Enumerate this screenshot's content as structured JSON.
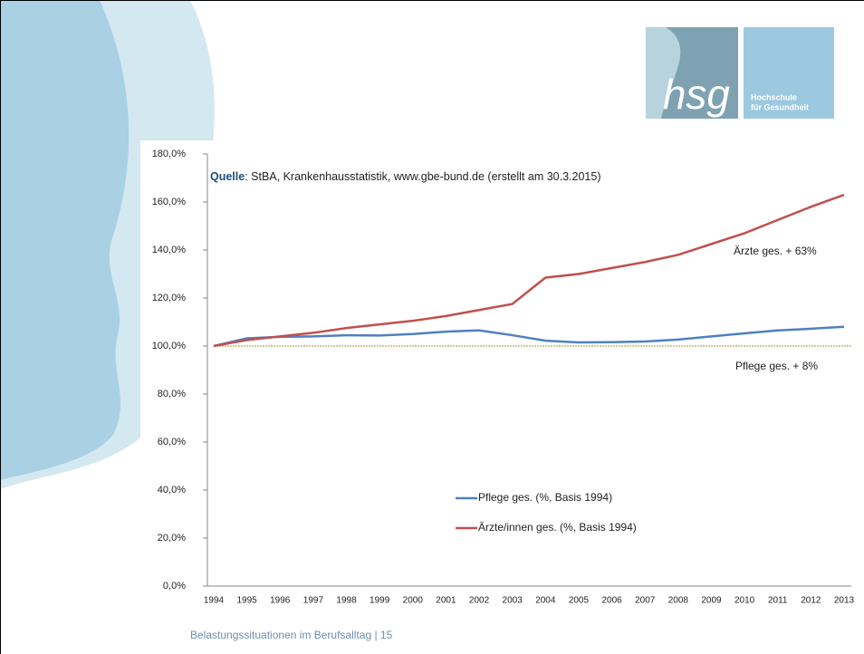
{
  "logo": {
    "mark": "hsg",
    "line1": "Hochschule",
    "line2": "für Gesundheit"
  },
  "footer": "Belastungssituationen im Berufsalltag | 15",
  "chart_data": {
    "type": "line",
    "source_label": "Quelle",
    "source_text": ": StBA, Krankenhausstatistik, www.gbe-bund.de  (erstellt am 30.3.2015)",
    "categories": [
      "1994",
      "1995",
      "1996",
      "1997",
      "1998",
      "1999",
      "2000",
      "2001",
      "2002",
      "2003",
      "2004",
      "2005",
      "2006",
      "2007",
      "2008",
      "2009",
      "2010",
      "2011",
      "2012",
      "2013"
    ],
    "series": [
      {
        "name": "Pflege ges. (%, Basis 1994)",
        "color": "#4f81bd",
        "values": [
          100,
          103.2,
          103.8,
          104,
          104.5,
          104.4,
          105,
          106,
          106.5,
          104.5,
          102.2,
          101.5,
          101.6,
          101.9,
          102.7,
          104,
          105.3,
          106.5,
          107.2,
          108
        ]
      },
      {
        "name": "Ärzte/innen ges. (%, Basis 1994)",
        "color": "#c0504d",
        "values": [
          100,
          102.5,
          104,
          105.5,
          107.5,
          109,
          110.5,
          112.5,
          115,
          117.5,
          128.5,
          130,
          132.5,
          135,
          138,
          142.5,
          147,
          152.5,
          158,
          163
        ]
      }
    ],
    "reference_line": 100,
    "reference_color": "#9a9a3a",
    "annotations": [
      "Ärzte ges. + 63%",
      "Pflege ges. + 8%"
    ],
    "ylim": [
      0,
      180
    ],
    "yticks": [
      {
        "value": 0,
        "label": "0,0%"
      },
      {
        "value": 20,
        "label": "20,0%"
      },
      {
        "value": 40,
        "label": "40,0%"
      },
      {
        "value": 60,
        "label": "60,0%"
      },
      {
        "value": 80,
        "label": "80,0%"
      },
      {
        "value": 100,
        "label": "100,0%"
      },
      {
        "value": 120,
        "label": "120,0%"
      },
      {
        "value": 140,
        "label": "140,0%"
      },
      {
        "value": 160,
        "label": "160,0%"
      },
      {
        "value": 180,
        "label": "180,0%"
      }
    ]
  }
}
